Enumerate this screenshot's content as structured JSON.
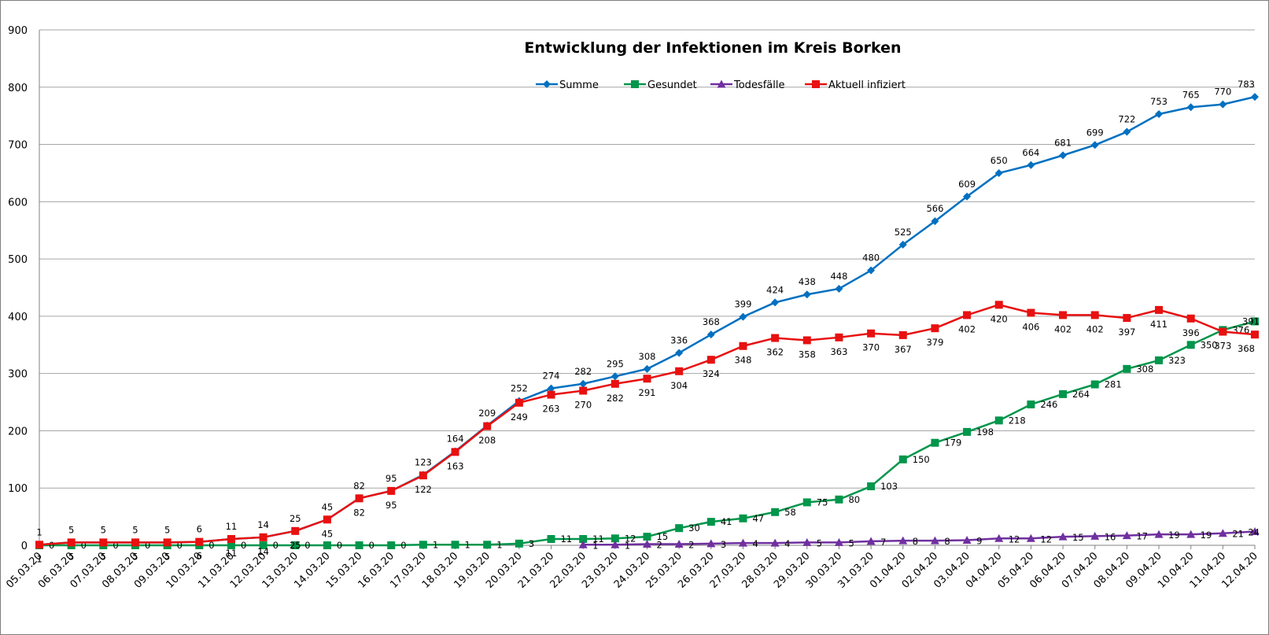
{
  "chart_data": {
    "type": "line",
    "title": "Entwicklung der Infektionen im Kreis Borken",
    "xlabel": "",
    "ylabel": "",
    "ylim": [
      0,
      900
    ],
    "yticks": [
      0,
      100,
      200,
      300,
      400,
      500,
      600,
      700,
      800,
      900
    ],
    "grid": true,
    "legend_position": "top-center",
    "categories": [
      "05.03.20",
      "06.03.20",
      "07.03.20",
      "08.03.20",
      "09.03.20",
      "10.03.20",
      "11.03.20",
      "12.03.20",
      "13.03.20",
      "14.03.20",
      "15.03.20",
      "16.03.20",
      "17.03.20",
      "18.03.20",
      "19.03.20",
      "20.03.20",
      "21.03.20",
      "22.03.20",
      "23.03.20",
      "24.03.20",
      "25.03.20",
      "26.03.20",
      "27.03.20",
      "28.03.20",
      "29.03.20",
      "30.03.20",
      "31.03.20",
      "01.04.20",
      "02.04.20",
      "03.04.20",
      "04.04.20",
      "05.04.20",
      "06.04.20",
      "07.04.20",
      "08.04.20",
      "09.04.20",
      "10.04.20",
      "11.04.20",
      "12.04.20"
    ],
    "series": [
      {
        "name": "Summe",
        "color": "#0070c0",
        "marker": "diamond",
        "values": [
          1,
          5,
          5,
          5,
          5,
          6,
          11,
          14,
          25,
          45,
          82,
          95,
          123,
          164,
          209,
          252,
          274,
          282,
          295,
          308,
          336,
          368,
          399,
          424,
          438,
          448,
          480,
          525,
          566,
          609,
          650,
          664,
          681,
          699,
          722,
          753,
          765,
          770,
          783
        ]
      },
      {
        "name": "Gesundet",
        "color": "#00964b",
        "marker": "square",
        "values": [
          0,
          0,
          0,
          0,
          0,
          0,
          0,
          0,
          0,
          0,
          0,
          0,
          1,
          1,
          1,
          3,
          11,
          11,
          12,
          15,
          30,
          41,
          47,
          58,
          75,
          80,
          103,
          150,
          179,
          198,
          218,
          246,
          264,
          281,
          308,
          323,
          350,
          376,
          391
        ]
      },
      {
        "name": "Todesfälle",
        "color": "#7030a0",
        "marker": "triangle",
        "values": [
          null,
          null,
          null,
          null,
          null,
          null,
          null,
          null,
          null,
          null,
          null,
          null,
          null,
          null,
          null,
          null,
          null,
          1,
          1,
          2,
          2,
          3,
          4,
          4,
          5,
          5,
          7,
          8,
          8,
          9,
          12,
          12,
          15,
          16,
          17,
          19,
          19,
          21,
          24
        ]
      },
      {
        "name": "Aktuell infiziert",
        "color": "#e81010",
        "marker": "square",
        "values": [
          1,
          5,
          5,
          5,
          5,
          6,
          11,
          14,
          25,
          45,
          82,
          95,
          122,
          163,
          208,
          249,
          263,
          270,
          282,
          291,
          304,
          324,
          348,
          362,
          358,
          363,
          370,
          367,
          379,
          402,
          420,
          406,
          402,
          402,
          397,
          411,
          396,
          373,
          368
        ]
      }
    ]
  }
}
